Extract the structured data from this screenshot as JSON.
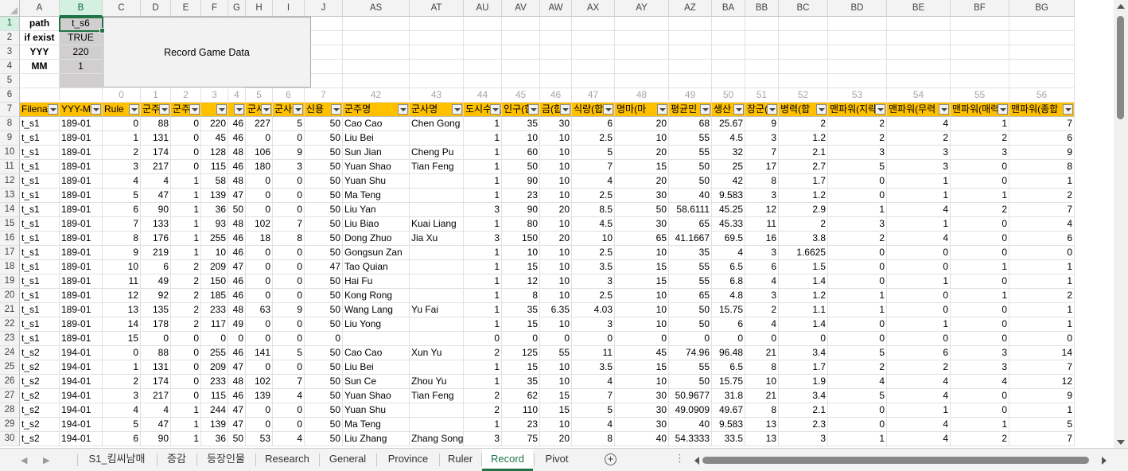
{
  "columns": [
    "A",
    "B",
    "C",
    "D",
    "E",
    "F",
    "G",
    "H",
    "I",
    "J",
    "AS",
    "AT",
    "AU",
    "AV",
    "AW",
    "AX",
    "AY",
    "AZ",
    "BA",
    "BB",
    "BC",
    "BD",
    "BE",
    "BF",
    "BG"
  ],
  "selected_column": "B",
  "selected_row": 1,
  "row_numbers": [
    1,
    2,
    3,
    4,
    5,
    6,
    7,
    8,
    9,
    10,
    11,
    12,
    13,
    14,
    15,
    16,
    17,
    18,
    19,
    20,
    21,
    22,
    23,
    24,
    25,
    26,
    27,
    28,
    29,
    30
  ],
  "params": [
    {
      "label": "path",
      "value": "t_s6"
    },
    {
      "label": "if exist",
      "value": "TRUE"
    },
    {
      "label": "YYY",
      "value": "220"
    },
    {
      "label": "MM",
      "value": "1"
    }
  ],
  "record_button_label": "Record Game Data",
  "index_row": [
    "",
    "",
    "0",
    "1",
    "2",
    "3",
    "4",
    "5",
    "6",
    "7",
    "42",
    "43",
    "44",
    "45",
    "46",
    "47",
    "48",
    "49",
    "50",
    "51",
    "52",
    "53",
    "54",
    "55",
    "56"
  ],
  "headers": [
    "Filena",
    "YYY-M",
    "Rule",
    "군주",
    "군주",
    "",
    "",
    "군사",
    "군사",
    "신용",
    "군주명",
    "군사명",
    "도시수(합",
    "인구(합",
    "금(합",
    "식량(합",
    "명마(마",
    "평균민",
    "생산",
    "장군(합",
    "병력(합",
    "맨파워(지략",
    "맨파워(무력",
    "맨파워(매력",
    "맨파워(종합"
  ],
  "rows": [
    [
      "t_s1",
      "189-01",
      "0",
      "88",
      "0",
      "220",
      "46",
      "227",
      "5",
      "50",
      "Cao Cao",
      "Chen Gong",
      "1",
      "35",
      "30",
      "6",
      "20",
      "68",
      "25.67",
      "9",
      "2",
      "2",
      "4",
      "1",
      "7"
    ],
    [
      "t_s1",
      "189-01",
      "1",
      "131",
      "0",
      "45",
      "46",
      "0",
      "0",
      "50",
      "Liu Bei",
      "",
      "1",
      "10",
      "10",
      "2.5",
      "10",
      "55",
      "4.5",
      "3",
      "1.2",
      "2",
      "2",
      "2",
      "6"
    ],
    [
      "t_s1",
      "189-01",
      "2",
      "174",
      "0",
      "128",
      "48",
      "106",
      "9",
      "50",
      "Sun Jian",
      "Cheng Pu",
      "1",
      "60",
      "10",
      "5",
      "20",
      "55",
      "32",
      "7",
      "2.1",
      "3",
      "3",
      "3",
      "9"
    ],
    [
      "t_s1",
      "189-01",
      "3",
      "217",
      "0",
      "115",
      "46",
      "180",
      "3",
      "50",
      "Yuan Shao",
      "Tian Feng",
      "1",
      "50",
      "10",
      "7",
      "15",
      "50",
      "25",
      "17",
      "2.7",
      "5",
      "3",
      "0",
      "8"
    ],
    [
      "t_s1",
      "189-01",
      "4",
      "4",
      "1",
      "58",
      "48",
      "0",
      "0",
      "50",
      "Yuan Shu",
      "",
      "1",
      "90",
      "10",
      "4",
      "20",
      "50",
      "42",
      "8",
      "1.7",
      "0",
      "1",
      "0",
      "1"
    ],
    [
      "t_s1",
      "189-01",
      "5",
      "47",
      "1",
      "139",
      "47",
      "0",
      "0",
      "50",
      "Ma Teng",
      "",
      "1",
      "23",
      "10",
      "2.5",
      "30",
      "40",
      "9.583",
      "3",
      "1.2",
      "0",
      "1",
      "1",
      "2"
    ],
    [
      "t_s1",
      "189-01",
      "6",
      "90",
      "1",
      "36",
      "50",
      "0",
      "0",
      "50",
      "Liu Yan",
      "",
      "3",
      "90",
      "20",
      "8.5",
      "50",
      "58.6111",
      "45.25",
      "12",
      "2.9",
      "1",
      "4",
      "2",
      "7"
    ],
    [
      "t_s1",
      "189-01",
      "7",
      "133",
      "1",
      "93",
      "48",
      "102",
      "7",
      "50",
      "Liu Biao",
      "Kuai Liang",
      "1",
      "80",
      "10",
      "4.5",
      "30",
      "65",
      "45.33",
      "11",
      "2",
      "3",
      "1",
      "0",
      "4"
    ],
    [
      "t_s1",
      "189-01",
      "8",
      "176",
      "1",
      "255",
      "46",
      "18",
      "8",
      "50",
      "Dong Zhuo",
      "Jia Xu",
      "3",
      "150",
      "20",
      "10",
      "65",
      "41.1667",
      "69.5",
      "16",
      "3.8",
      "2",
      "4",
      "0",
      "6"
    ],
    [
      "t_s1",
      "189-01",
      "9",
      "219",
      "1",
      "10",
      "46",
      "0",
      "0",
      "50",
      "Gongsun Zan",
      "",
      "1",
      "10",
      "10",
      "2.5",
      "10",
      "35",
      "4",
      "3",
      "1.6625",
      "0",
      "0",
      "0",
      "0"
    ],
    [
      "t_s1",
      "189-01",
      "10",
      "6",
      "2",
      "209",
      "47",
      "0",
      "0",
      "47",
      "Tao Quian",
      "",
      "1",
      "15",
      "10",
      "3.5",
      "15",
      "55",
      "6.5",
      "6",
      "1.5",
      "0",
      "0",
      "1",
      "1"
    ],
    [
      "t_s1",
      "189-01",
      "11",
      "49",
      "2",
      "150",
      "46",
      "0",
      "0",
      "50",
      "Hai Fu",
      "",
      "1",
      "12",
      "10",
      "3",
      "15",
      "55",
      "6.8",
      "4",
      "1.4",
      "0",
      "1",
      "0",
      "1"
    ],
    [
      "t_s1",
      "189-01",
      "12",
      "92",
      "2",
      "185",
      "46",
      "0",
      "0",
      "50",
      "Kong Rong",
      "",
      "1",
      "8",
      "10",
      "2.5",
      "10",
      "65",
      "4.8",
      "3",
      "1.2",
      "1",
      "0",
      "1",
      "2"
    ],
    [
      "t_s1",
      "189-01",
      "13",
      "135",
      "2",
      "233",
      "48",
      "63",
      "9",
      "50",
      "Wang Lang",
      "Yu Fai",
      "1",
      "35",
      "6.35",
      "4.03",
      "10",
      "50",
      "15.75",
      "2",
      "1.1",
      "1",
      "0",
      "0",
      "1"
    ],
    [
      "t_s1",
      "189-01",
      "14",
      "178",
      "2",
      "117",
      "49",
      "0",
      "0",
      "50",
      "Liu Yong",
      "",
      "1",
      "15",
      "10",
      "3",
      "10",
      "50",
      "6",
      "4",
      "1.4",
      "0",
      "1",
      "0",
      "1"
    ],
    [
      "t_s1",
      "189-01",
      "15",
      "0",
      "0",
      "0",
      "0",
      "0",
      "0",
      "0",
      "",
      "",
      "0",
      "0",
      "0",
      "0",
      "0",
      "0",
      "0",
      "0",
      "0",
      "0",
      "0",
      "0",
      "0"
    ],
    [
      "t_s2",
      "194-01",
      "0",
      "88",
      "0",
      "255",
      "46",
      "141",
      "5",
      "50",
      "Cao Cao",
      "Xun Yu",
      "2",
      "125",
      "55",
      "11",
      "45",
      "74.96",
      "96.48",
      "21",
      "3.4",
      "5",
      "6",
      "3",
      "14"
    ],
    [
      "t_s2",
      "194-01",
      "1",
      "131",
      "0",
      "209",
      "47",
      "0",
      "0",
      "50",
      "Liu Bei",
      "",
      "1",
      "15",
      "10",
      "3.5",
      "15",
      "55",
      "6.5",
      "8",
      "1.7",
      "2",
      "2",
      "3",
      "7"
    ],
    [
      "t_s2",
      "194-01",
      "2",
      "174",
      "0",
      "233",
      "48",
      "102",
      "7",
      "50",
      "Sun Ce",
      "Zhou Yu",
      "1",
      "35",
      "10",
      "4",
      "10",
      "50",
      "15.75",
      "10",
      "1.9",
      "4",
      "4",
      "4",
      "12"
    ],
    [
      "t_s2",
      "194-01",
      "3",
      "217",
      "0",
      "115",
      "46",
      "139",
      "4",
      "50",
      "Yuan Shao",
      "Tian Feng",
      "2",
      "62",
      "15",
      "7",
      "30",
      "50.9677",
      "31.8",
      "21",
      "3.4",
      "5",
      "4",
      "0",
      "9"
    ],
    [
      "t_s2",
      "194-01",
      "4",
      "4",
      "1",
      "244",
      "47",
      "0",
      "0",
      "50",
      "Yuan Shu",
      "",
      "2",
      "110",
      "15",
      "5",
      "30",
      "49.0909",
      "49.67",
      "8",
      "2.1",
      "0",
      "1",
      "0",
      "1"
    ],
    [
      "t_s2",
      "194-01",
      "5",
      "47",
      "1",
      "139",
      "47",
      "0",
      "0",
      "50",
      "Ma Teng",
      "",
      "1",
      "23",
      "10",
      "4",
      "30",
      "40",
      "9.583",
      "13",
      "2.3",
      "0",
      "4",
      "1",
      "5"
    ],
    [
      "t_s2",
      "194-01",
      "6",
      "90",
      "1",
      "36",
      "50",
      "53",
      "4",
      "50",
      "Liu Zhang",
      "Zhang Song",
      "3",
      "75",
      "20",
      "8",
      "40",
      "54.3333",
      "33.5",
      "13",
      "3",
      "1",
      "4",
      "2",
      "7"
    ]
  ],
  "tabs": [
    "S1_킴씨남매",
    "증감",
    "등장인물",
    "Research",
    "General",
    "Province",
    "Ruler",
    "Record",
    "Pivot"
  ],
  "active_tab": "Record"
}
